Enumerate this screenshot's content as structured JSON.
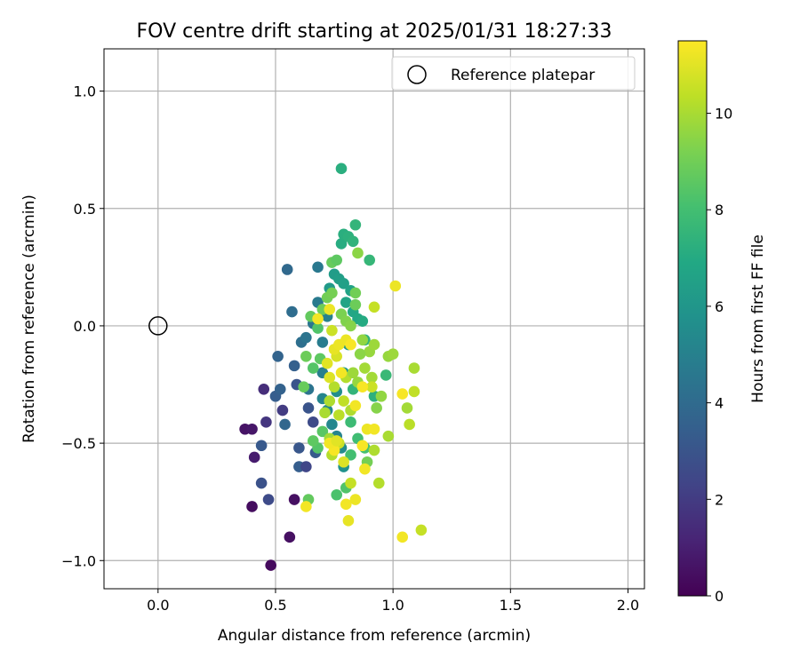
{
  "chart_data": {
    "type": "scatter",
    "title": "FOV centre drift starting at 2025/01/31 18:27:33",
    "xlabel": "Angular distance from reference (arcmin)",
    "ylabel": "Rotation from reference (arcmin)",
    "xlim": [
      -0.23,
      2.07
    ],
    "ylim": [
      -1.12,
      1.18
    ],
    "xticks": [
      "0.0",
      "0.5",
      "1.0",
      "1.5",
      "2.0"
    ],
    "xtick_values": [
      0,
      0.5,
      1.0,
      1.5,
      2.0
    ],
    "yticks": [
      "1.0",
      "0.5",
      "0.0",
      "−0.5",
      "−1.0"
    ],
    "ytick_values": [
      1.0,
      0.5,
      0.0,
      -0.5,
      -1.0
    ],
    "grid": true,
    "legend": {
      "position": "top-right",
      "entries": [
        "Reference platepar"
      ]
    },
    "reference_point": {
      "label": "Reference platepar",
      "x": 0.0,
      "y": 0.0
    },
    "colorbar": {
      "label": "Hours from first FF file",
      "colormap": "viridis",
      "range": [
        0,
        11.5
      ],
      "ticks": [
        "0",
        "2",
        "4",
        "6",
        "8",
        "10"
      ],
      "tick_values": [
        0,
        2,
        4,
        6,
        8,
        10
      ]
    },
    "colormap_stops": [
      "#440154",
      "#482475",
      "#414487",
      "#355f8d",
      "#2a788e",
      "#21918c",
      "#22a884",
      "#44bf70",
      "#7ad151",
      "#bddf26",
      "#fde725"
    ],
    "series": [
      {
        "points": [
          [
            0.48,
            -1.02,
            0.3
          ],
          [
            0.56,
            -0.9,
            0.5
          ],
          [
            0.4,
            -0.77,
            0.4
          ],
          [
            0.37,
            -0.44,
            0.6
          ],
          [
            0.4,
            -0.44,
            0.7
          ],
          [
            0.41,
            -0.56,
            0.9
          ],
          [
            0.58,
            -0.74,
            0.5
          ],
          [
            0.45,
            -0.27,
            1.5
          ],
          [
            0.46,
            -0.41,
            1.8
          ],
          [
            0.47,
            -0.74,
            2.6
          ],
          [
            0.44,
            -0.67,
            2.9
          ],
          [
            0.44,
            -0.51,
            3.2
          ],
          [
            0.5,
            -0.3,
            3.4
          ],
          [
            0.53,
            -0.36,
            2.0
          ],
          [
            0.52,
            -0.27,
            3.6
          ],
          [
            0.54,
            -0.42,
            3.8
          ],
          [
            0.59,
            -0.25,
            3.0
          ],
          [
            0.6,
            -0.52,
            3.1
          ],
          [
            0.6,
            -0.6,
            3.4
          ],
          [
            0.63,
            -0.6,
            2.4
          ],
          [
            0.64,
            -0.35,
            3.0
          ],
          [
            0.66,
            -0.41,
            2.6
          ],
          [
            0.67,
            -0.54,
            3.3
          ],
          [
            0.64,
            -0.27,
            4.4
          ],
          [
            0.58,
            -0.17,
            3.5
          ],
          [
            0.51,
            -0.13,
            3.7
          ],
          [
            0.55,
            0.24,
            3.9
          ],
          [
            0.57,
            0.06,
            4.1
          ],
          [
            0.61,
            -0.07,
            4.2
          ],
          [
            0.63,
            -0.05,
            4.4
          ],
          [
            0.66,
            0.01,
            4.5
          ],
          [
            0.68,
            0.25,
            4.6
          ],
          [
            0.68,
            0.1,
            4.7
          ],
          [
            0.7,
            -0.07,
            4.8
          ],
          [
            0.72,
            0.04,
            5.0
          ],
          [
            0.7,
            -0.2,
            4.9
          ],
          [
            0.7,
            -0.31,
            5.2
          ],
          [
            0.72,
            -0.36,
            5.4
          ],
          [
            0.74,
            -0.42,
            5.3
          ],
          [
            0.76,
            -0.47,
            5.1
          ],
          [
            0.78,
            -0.52,
            5.5
          ],
          [
            0.79,
            -0.6,
            5.8
          ],
          [
            0.76,
            -0.28,
            5.6
          ],
          [
            0.79,
            -0.2,
            6.0
          ],
          [
            0.81,
            -0.08,
            6.1
          ],
          [
            0.73,
            0.16,
            6.2
          ],
          [
            0.75,
            0.22,
            6.3
          ],
          [
            0.77,
            0.2,
            6.4
          ],
          [
            0.79,
            0.18,
            6.5
          ],
          [
            0.82,
            0.15,
            6.6
          ],
          [
            0.8,
            0.1,
            6.7
          ],
          [
            0.83,
            0.06,
            6.8
          ],
          [
            0.85,
            0.03,
            6.9
          ],
          [
            0.87,
            0.02,
            7.0
          ],
          [
            0.78,
            0.35,
            7.1
          ],
          [
            0.79,
            0.39,
            7.2
          ],
          [
            0.81,
            0.38,
            7.3
          ],
          [
            0.83,
            0.36,
            7.4
          ],
          [
            0.84,
            0.43,
            7.5
          ],
          [
            0.78,
            0.67,
            7.2
          ],
          [
            0.9,
            0.28,
            7.6
          ],
          [
            0.88,
            -0.06,
            7.4
          ],
          [
            0.92,
            -0.3,
            7.3
          ],
          [
            0.97,
            -0.21,
            7.7
          ],
          [
            0.83,
            -0.27,
            7.5
          ],
          [
            0.82,
            -0.41,
            7.8
          ],
          [
            0.85,
            -0.48,
            7.9
          ],
          [
            0.82,
            -0.55,
            8.0
          ],
          [
            0.88,
            -0.52,
            8.1
          ],
          [
            0.76,
            -0.72,
            8.2
          ],
          [
            0.8,
            -0.69,
            8.3
          ],
          [
            0.68,
            -0.52,
            8.4
          ],
          [
            0.7,
            -0.45,
            8.5
          ],
          [
            0.66,
            -0.49,
            8.6
          ],
          [
            0.64,
            -0.74,
            8.7
          ],
          [
            0.62,
            -0.26,
            8.8
          ],
          [
            0.63,
            -0.13,
            8.9
          ],
          [
            0.66,
            -0.18,
            8.4
          ],
          [
            0.69,
            -0.14,
            8.6
          ],
          [
            0.65,
            0.04,
            8.7
          ],
          [
            0.68,
            -0.01,
            8.3
          ],
          [
            0.7,
            0.07,
            8.9
          ],
          [
            0.72,
            0.12,
            9.0
          ],
          [
            0.74,
            0.27,
            8.8
          ],
          [
            0.76,
            0.28,
            8.6
          ],
          [
            0.74,
            0.14,
            9.1
          ],
          [
            0.78,
            0.05,
            9.2
          ],
          [
            0.8,
            0.02,
            9.3
          ],
          [
            0.82,
            0.0,
            9.4
          ],
          [
            0.84,
            0.14,
            9.0
          ],
          [
            0.84,
            0.09,
            8.9
          ],
          [
            0.85,
            0.31,
            9.5
          ],
          [
            0.87,
            -0.06,
            9.6
          ],
          [
            0.9,
            -0.11,
            9.7
          ],
          [
            0.92,
            -0.08,
            9.8
          ],
          [
            0.91,
            -0.22,
            9.9
          ],
          [
            0.93,
            -0.35,
            9.4
          ],
          [
            0.95,
            -0.3,
            9.6
          ],
          [
            0.98,
            -0.13,
            9.7
          ],
          [
            1.0,
            -0.12,
            9.8
          ],
          [
            0.98,
            -0.47,
            10.0
          ],
          [
            0.92,
            -0.53,
            10.1
          ],
          [
            0.94,
            -0.67,
            10.2
          ],
          [
            1.07,
            -0.42,
            10.3
          ],
          [
            1.06,
            -0.35,
            9.9
          ],
          [
            1.09,
            -0.18,
            10.0
          ],
          [
            1.09,
            -0.28,
            10.4
          ],
          [
            0.89,
            -0.58,
            9.1
          ],
          [
            0.82,
            -0.67,
            10.5
          ],
          [
            0.77,
            -0.5,
            10.6
          ],
          [
            0.74,
            -0.55,
            10.2
          ],
          [
            0.73,
            -0.48,
            9.9
          ],
          [
            0.71,
            -0.37,
            10.0
          ],
          [
            0.73,
            -0.32,
            10.1
          ],
          [
            0.75,
            -0.26,
            10.2
          ],
          [
            0.77,
            -0.38,
            10.3
          ],
          [
            0.79,
            -0.32,
            10.4
          ],
          [
            0.8,
            -0.22,
            10.2
          ],
          [
            0.82,
            -0.36,
            10.1
          ],
          [
            0.83,
            -0.2,
            9.8
          ],
          [
            0.85,
            -0.24,
            9.7
          ],
          [
            0.86,
            -0.12,
            9.5
          ],
          [
            0.88,
            -0.18,
            9.9
          ],
          [
            0.91,
            -0.26,
            10.6
          ],
          [
            0.92,
            0.08,
            10.5
          ],
          [
            0.74,
            -0.02,
            10.6
          ],
          [
            0.76,
            -0.13,
            10.8
          ],
          [
            0.73,
            -0.22,
            10.9
          ],
          [
            0.72,
            -0.16,
            11.0
          ],
          [
            0.75,
            -0.1,
            11.1
          ],
          [
            0.77,
            -0.08,
            11.2
          ],
          [
            0.78,
            -0.2,
            11.3
          ],
          [
            0.8,
            -0.06,
            11.2
          ],
          [
            0.82,
            -0.08,
            11.4
          ],
          [
            0.84,
            -0.34,
            11.3
          ],
          [
            0.87,
            -0.26,
            11.4
          ],
          [
            0.89,
            -0.44,
            11.2
          ],
          [
            0.92,
            -0.44,
            11.3
          ],
          [
            0.87,
            -0.51,
            11.4
          ],
          [
            0.88,
            -0.61,
            11.3
          ],
          [
            0.79,
            -0.58,
            10.9
          ],
          [
            0.8,
            -0.76,
            11.3
          ],
          [
            0.84,
            -0.74,
            11.2
          ],
          [
            0.81,
            -0.83,
            11.1
          ],
          [
            0.75,
            -0.53,
            11.4
          ],
          [
            0.73,
            -0.5,
            11.3
          ],
          [
            0.73,
            0.07,
            11.2
          ],
          [
            0.68,
            0.03,
            11.3
          ],
          [
            1.01,
            0.17,
            11.2
          ],
          [
            1.04,
            -0.29,
            11.4
          ],
          [
            1.04,
            -0.9,
            11.3
          ],
          [
            1.12,
            -0.87,
            10.5
          ],
          [
            0.63,
            -0.77,
            11.3
          ],
          [
            0.76,
            -0.49,
            11.0
          ]
        ]
      }
    ]
  }
}
